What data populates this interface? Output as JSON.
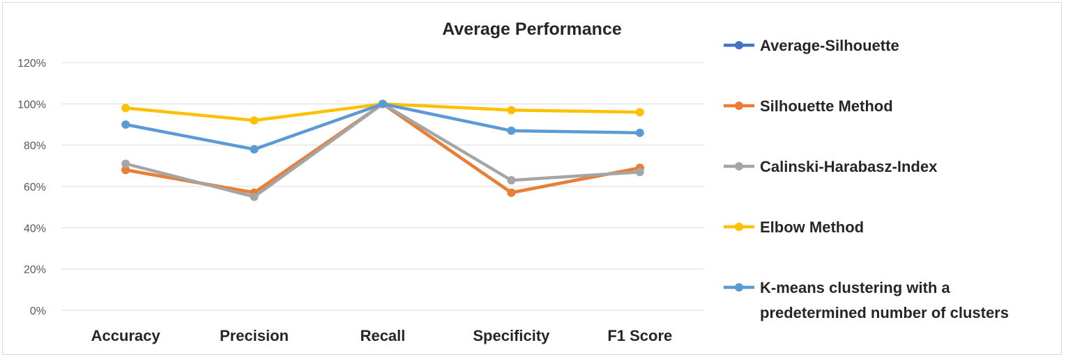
{
  "chart_data": {
    "type": "line",
    "title": "Average Performance",
    "categories": [
      "Accuracy",
      "Precision",
      "Recall",
      "Specificity",
      "F1 Score"
    ],
    "ylim": [
      0,
      120
    ],
    "yticks": [
      0,
      20,
      40,
      60,
      80,
      100,
      120
    ],
    "ytick_labels": [
      "0%",
      "20%",
      "40%",
      "60%",
      "80%",
      "100%",
      "120%"
    ],
    "grid": true,
    "legend_position": "right",
    "series": [
      {
        "name": "Average-Silhouette",
        "color": "#4472c4",
        "values": [
          68,
          57,
          100,
          57,
          69
        ]
      },
      {
        "name": "Silhouette Method",
        "color": "#ed7d31",
        "values": [
          68,
          57,
          100,
          57,
          69
        ]
      },
      {
        "name": "Calinski-Harabasz-Index",
        "color": "#a5a5a5",
        "values": [
          71,
          55,
          100,
          63,
          67
        ]
      },
      {
        "name": "Elbow Method",
        "color": "#ffc000",
        "values": [
          98,
          92,
          100,
          97,
          96
        ]
      },
      {
        "name": "K-means clustering with a predetermined number of clusters",
        "color": "#5b9bd5",
        "values": [
          90,
          78,
          100,
          87,
          86
        ]
      }
    ]
  },
  "legend": {
    "lines": [
      [
        "Average-Silhouette"
      ],
      [
        "Silhouette Method"
      ],
      [
        "Calinski-Harabasz-Index"
      ],
      [
        "Elbow Method"
      ],
      [
        "K-means clustering with a",
        "predetermined number of clusters"
      ]
    ]
  }
}
